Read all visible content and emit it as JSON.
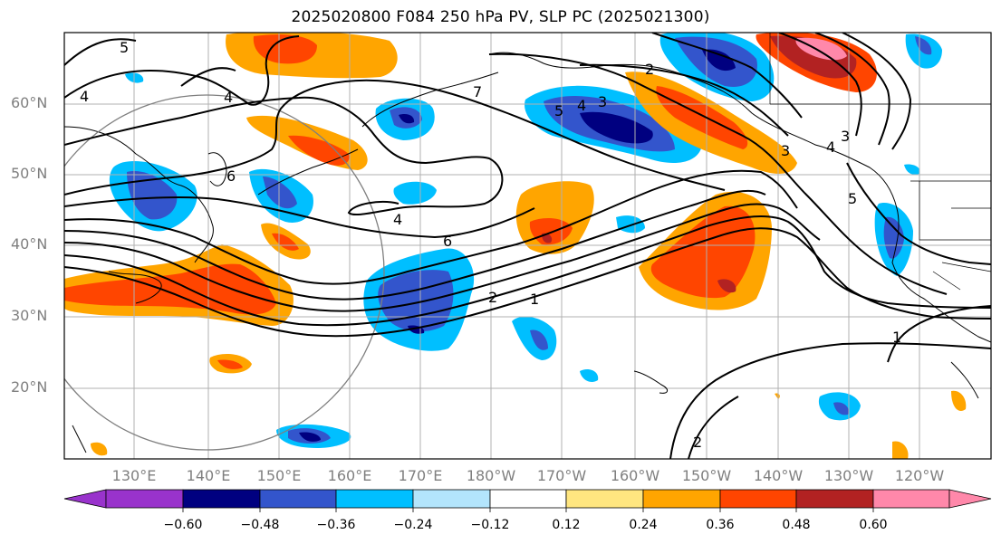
{
  "title": "2025020800 F084 250 hPa PV, SLP PC (2025021300)",
  "map": {
    "lat_labels": [
      "60°N",
      "50°N",
      "40°N",
      "30°N",
      "20°N"
    ],
    "lon_labels": [
      "130°E",
      "140°E",
      "150°E",
      "160°E",
      "170°E",
      "180°W",
      "170°W",
      "160°W",
      "150°W",
      "140°W",
      "130°W",
      "120°W"
    ],
    "contour_labels": [
      "5",
      "4",
      "4",
      "6",
      "4",
      "6",
      "7",
      "5",
      "4",
      "3",
      "2",
      "3",
      "5",
      "4",
      "3",
      "2",
      "1",
      "1",
      "2"
    ]
  },
  "colorbar": {
    "ticks": [
      "−0.60",
      "−0.48",
      "−0.36",
      "−0.24",
      "−0.12",
      "0.12",
      "0.24",
      "0.36",
      "0.48",
      "0.60"
    ],
    "colors": [
      "#9933cc",
      "#000080",
      "#3355cc",
      "#00bfff",
      "#b3e5fc",
      "#ffffff",
      "#ffe680",
      "#ffa500",
      "#ff4500",
      "#b22222",
      "#ff88aa",
      "#ffd0e0"
    ]
  }
}
